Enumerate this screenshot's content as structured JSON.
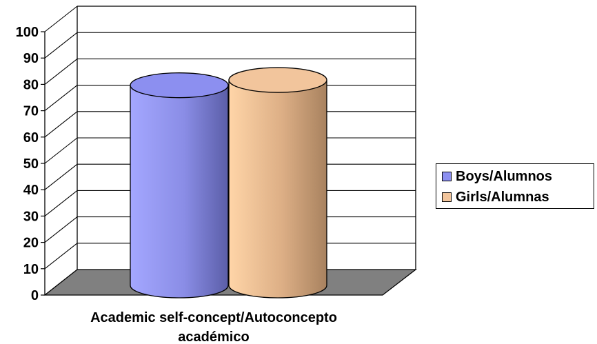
{
  "chart_data": {
    "type": "bar",
    "style": "3d-cylinder",
    "categories": [
      "Academic self-concept/Autoconcepto académico"
    ],
    "category_lines": [
      "Academic self-concept/Autoconcepto",
      "académico"
    ],
    "series": [
      {
        "name": "Boys/Alumnos",
        "values": [
          76
        ],
        "color": "#8c8ff0"
      },
      {
        "name": "Girls/Alumnas",
        "values": [
          78
        ],
        "color": "#f2c59c"
      }
    ],
    "ylim": [
      0,
      100
    ],
    "yticks": [
      "0",
      "10",
      "20",
      "30",
      "40",
      "50",
      "60",
      "70",
      "80",
      "90",
      "100"
    ],
    "grid": true,
    "legend_position": "right",
    "floor_color": "#808080"
  }
}
